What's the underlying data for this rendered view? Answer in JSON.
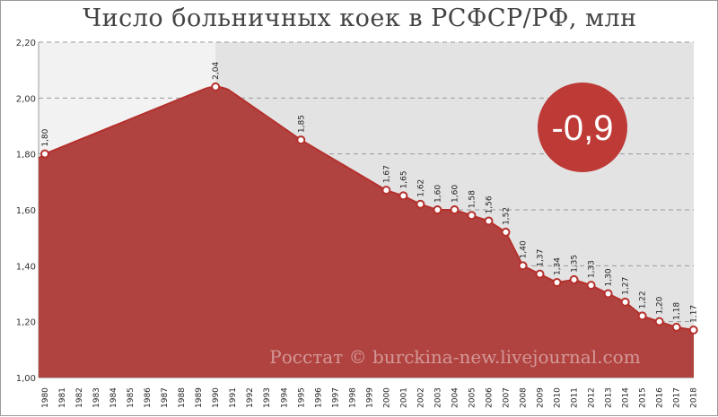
{
  "chart_data": {
    "type": "area",
    "title": "Число больничных коек в РСФСР/РФ, млн",
    "xlabel": "",
    "ylabel": "",
    "ylim": [
      1.0,
      2.2
    ],
    "yticks": [
      "1,00",
      "1,20",
      "1,40",
      "1,60",
      "1,80",
      "2,00",
      "2,20"
    ],
    "ytick_values": [
      1.0,
      1.2,
      1.4,
      1.6,
      1.8,
      2.0,
      2.2
    ],
    "categories": [
      "1980",
      "1981",
      "1982",
      "1983",
      "1984",
      "1985",
      "1986",
      "1987",
      "1988",
      "1989",
      "1990",
      "1991",
      "1992",
      "1993",
      "1994",
      "1995",
      "1996",
      "1997",
      "1998",
      "1999",
      "2000",
      "2001",
      "2002",
      "2003",
      "2004",
      "2005",
      "2006",
      "2007",
      "2008",
      "2009",
      "2010",
      "2011",
      "2012",
      "2013",
      "2014",
      "2015",
      "2016",
      "2017",
      "2018"
    ],
    "points": [
      {
        "x": "1980",
        "y": 1.8,
        "label": "1,80"
      },
      {
        "x": "1990",
        "y": 2.04,
        "label": "2,04"
      },
      {
        "x": "1995",
        "y": 1.85,
        "label": "1,85"
      },
      {
        "x": "2000",
        "y": 1.67,
        "label": "1,67"
      },
      {
        "x": "2001",
        "y": 1.65,
        "label": "1,65"
      },
      {
        "x": "2002",
        "y": 1.62,
        "label": "1,62"
      },
      {
        "x": "2003",
        "y": 1.6,
        "label": "1,60"
      },
      {
        "x": "2004",
        "y": 1.6,
        "label": "1,60"
      },
      {
        "x": "2005",
        "y": 1.58,
        "label": "1,58"
      },
      {
        "x": "2006",
        "y": 1.56,
        "label": "1,56"
      },
      {
        "x": "2007",
        "y": 1.52,
        "label": "1,52"
      },
      {
        "x": "2008",
        "y": 1.4,
        "label": "1,40"
      },
      {
        "x": "2009",
        "y": 1.37,
        "label": "1,37"
      },
      {
        "x": "2010",
        "y": 1.34,
        "label": "1,34"
      },
      {
        "x": "2011",
        "y": 1.35,
        "label": "1,35"
      },
      {
        "x": "2012",
        "y": 1.33,
        "label": "1,33"
      },
      {
        "x": "2013",
        "y": 1.3,
        "label": "1,30"
      },
      {
        "x": "2014",
        "y": 1.27,
        "label": "1,27"
      },
      {
        "x": "2015",
        "y": 1.22,
        "label": "1,22"
      },
      {
        "x": "2016",
        "y": 1.2,
        "label": "1,20"
      },
      {
        "x": "2017",
        "y": 1.18,
        "label": "1,18"
      },
      {
        "x": "2018",
        "y": 1.17,
        "label": "1,17"
      }
    ],
    "grid": true,
    "badge": "-0,9",
    "watermark": "Росстат © burckina-new.livejournal.com"
  },
  "colors": {
    "area_fill": "#b04340",
    "line": "#b5302c",
    "marker_fill": "#ffffff",
    "badge_fill": "#be3a37",
    "plot_bg_light": "#f2f2f2",
    "plot_bg_dark": "#e3e3e3",
    "grid": "#9a9a9a"
  }
}
